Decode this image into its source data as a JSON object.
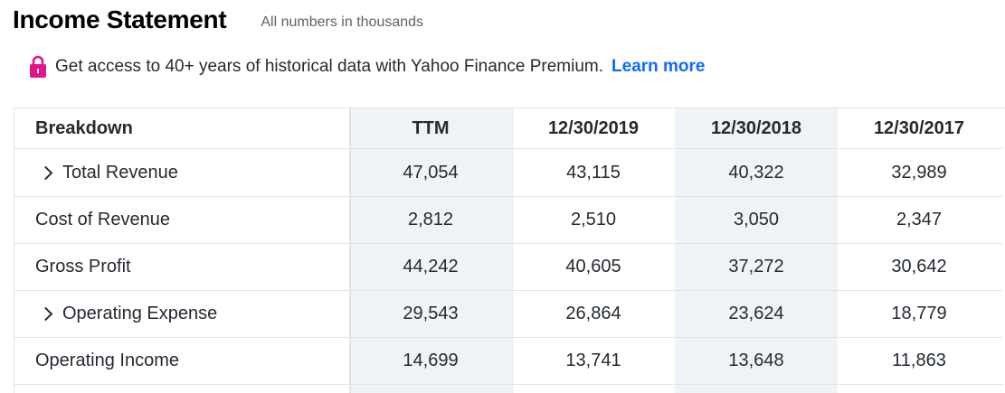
{
  "header": {
    "title": "Income Statement",
    "subtitle": "All numbers in thousands"
  },
  "promo": {
    "icon": "lock-icon",
    "text": "Get access to 40+ years of historical data with Yahoo Finance Premium.",
    "link": "Learn more",
    "link_color": "#0f69ff",
    "icon_color": "#e0168a"
  },
  "table": {
    "columns": [
      "Breakdown",
      "TTM",
      "12/30/2019",
      "12/30/2018",
      "12/30/2017"
    ],
    "rows": [
      {
        "label": "Total Revenue",
        "expandable": true,
        "values": [
          "47,054",
          "43,115",
          "40,322",
          "32,989"
        ]
      },
      {
        "label": "Cost of Revenue",
        "expandable": false,
        "values": [
          "2,812",
          "2,510",
          "3,050",
          "2,347"
        ]
      },
      {
        "label": "Gross Profit",
        "expandable": false,
        "values": [
          "44,242",
          "40,605",
          "37,272",
          "30,642"
        ]
      },
      {
        "label": "Operating Expense",
        "expandable": true,
        "values": [
          "29,543",
          "26,864",
          "23,624",
          "18,779"
        ]
      },
      {
        "label": "Operating Income",
        "expandable": false,
        "values": [
          "14,699",
          "13,741",
          "13,648",
          "11,863"
        ]
      }
    ]
  }
}
